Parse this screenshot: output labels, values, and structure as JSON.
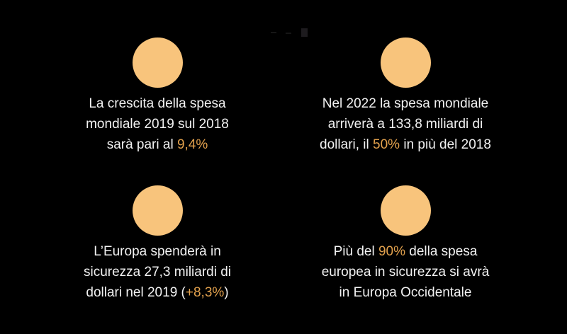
{
  "colors": {
    "background": "#000000",
    "circle": "#F8C47C",
    "text": "#F2F2F2",
    "highlight": "#E2A14D"
  },
  "cards": [
    {
      "id": "crescita-spesa-mondiale",
      "lines": [
        {
          "segments": [
            {
              "text": "La crescita della spesa"
            }
          ]
        },
        {
          "segments": [
            {
              "text": "mondiale 2019 sul 2018"
            }
          ]
        },
        {
          "segments": [
            {
              "text": "sarà pari al "
            },
            {
              "text": "9,4%",
              "highlight": true
            }
          ]
        }
      ]
    },
    {
      "id": "spesa-mondiale-2022",
      "lines": [
        {
          "segments": [
            {
              "text": "Nel 2022 la spesa mondiale"
            }
          ]
        },
        {
          "segments": [
            {
              "text": "arriverà a 133,8 miliardi di"
            }
          ]
        },
        {
          "segments": [
            {
              "text": "dollari, il "
            },
            {
              "text": "50%",
              "highlight": true
            },
            {
              "text": " in più del 2018"
            }
          ]
        }
      ]
    },
    {
      "id": "spesa-europa-2019",
      "lines": [
        {
          "segments": [
            {
              "text": "L’Europa spenderà in"
            }
          ]
        },
        {
          "segments": [
            {
              "text": "sicurezza 27,3 miliardi di"
            }
          ]
        },
        {
          "segments": [
            {
              "text": "dollari nel 2019 ("
            },
            {
              "text": "+8,3%",
              "highlight": true
            },
            {
              "text": ")"
            }
          ]
        }
      ]
    },
    {
      "id": "spesa-europa-occidentale",
      "lines": [
        {
          "segments": [
            {
              "text": "Più del "
            },
            {
              "text": "90%",
              "highlight": true
            },
            {
              "text": " della spesa"
            }
          ]
        },
        {
          "segments": [
            {
              "text": "europea in sicurezza si avrà"
            }
          ]
        },
        {
          "segments": [
            {
              "text": "in Europa Occidentale"
            }
          ]
        }
      ]
    }
  ]
}
